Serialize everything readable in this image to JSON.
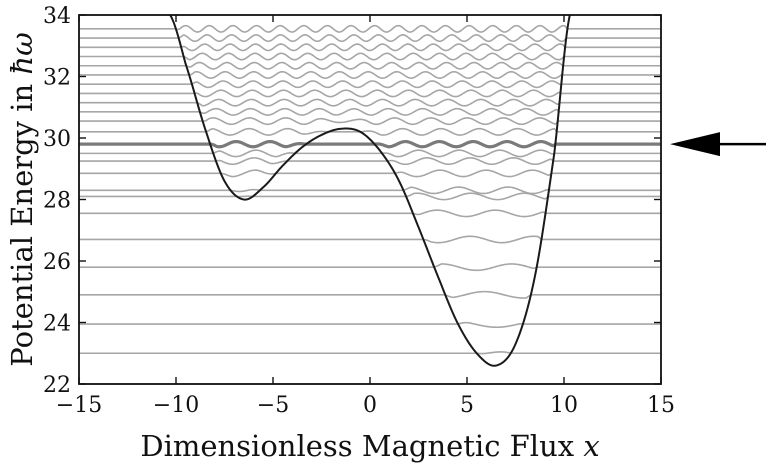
{
  "chart_data": {
    "type": "line",
    "title": "",
    "xlabel": "Dimensionless Magnetic Flux x",
    "xlabel_text": "Dimensionless Magnetic Flux ",
    "xlabel_var": "x",
    "ylabel": "Potential Energy in ħω",
    "ylabel_text": "Potential Energy in ",
    "ylabel_var": "ħω",
    "xlim": [
      -15,
      15
    ],
    "ylim": [
      22,
      34
    ],
    "xticks": [
      -15,
      -10,
      -5,
      0,
      5,
      10,
      15
    ],
    "yticks": [
      22,
      24,
      26,
      28,
      30,
      32,
      34
    ],
    "xtick_labels": [
      "−15",
      "−10",
      "−5",
      "0",
      "5",
      "10",
      "15"
    ],
    "ytick_labels": [
      "22",
      "24",
      "26",
      "28",
      "30",
      "32",
      "34"
    ],
    "grid": false,
    "potential": {
      "name": "potential",
      "color": "#1a1a1a",
      "x": [
        -10.3,
        -9.5,
        -8.5,
        -7.5,
        -6.5,
        -5.5,
        -4.5,
        -3.5,
        -2.5,
        -1.5,
        -0.5,
        0.5,
        1.5,
        2.5,
        3.5,
        4.5,
        5.5,
        6.5,
        7.5,
        8.5,
        9.5,
        10.3
      ],
      "y": [
        34.0,
        32.4,
        30.3,
        28.6,
        28.0,
        28.4,
        29.1,
        29.7,
        30.1,
        30.3,
        30.2,
        29.6,
        28.6,
        27.1,
        25.5,
        24.0,
        23.0,
        22.6,
        23.3,
        25.5,
        29.5,
        34.0
      ]
    },
    "levels": {
      "color": "#a6a6a6",
      "energies": [
        23.0,
        23.95,
        24.9,
        25.8,
        26.7,
        27.55,
        28.1,
        28.3,
        28.85,
        29.25,
        29.5,
        30.2,
        30.55,
        30.85,
        31.15,
        31.45,
        31.75,
        32.05,
        32.35,
        32.65,
        32.95,
        33.25,
        33.55
      ],
      "highlighted_energy": 29.8,
      "highlight_color": "#7a7a7a"
    },
    "annotation": {
      "name": "arrow",
      "points_to_y": 29.8,
      "color": "#000000"
    }
  }
}
